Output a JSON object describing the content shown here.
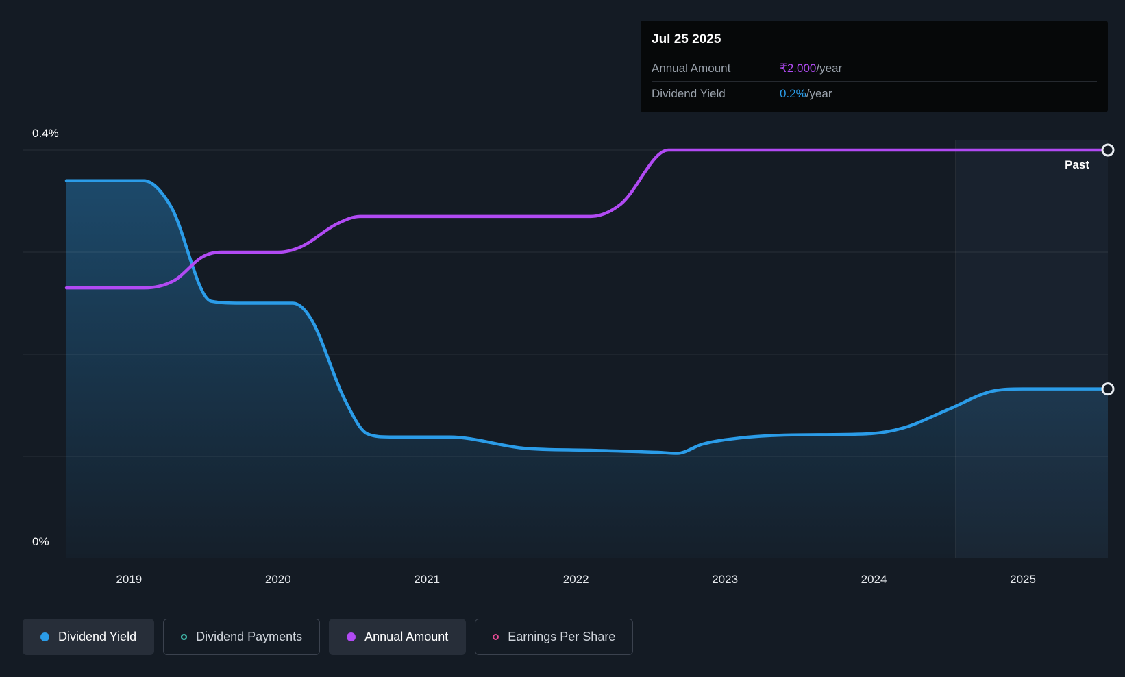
{
  "tooltip": {
    "date": "Jul 25 2025",
    "rows": [
      {
        "label": "Annual Amount",
        "value": "₹2.000",
        "suffix": "/year",
        "color": "#b14af3"
      },
      {
        "label": "Dividend Yield",
        "value": "0.2%",
        "suffix": "/year",
        "color": "#2b9ce8"
      }
    ]
  },
  "past_label": "Past",
  "legend": [
    {
      "label": "Dividend Yield",
      "active": true,
      "marker": "dot",
      "color": "#2b9ce8"
    },
    {
      "label": "Dividend Payments",
      "active": false,
      "marker": "ring",
      "color": "#45c8b8"
    },
    {
      "label": "Annual Amount",
      "active": true,
      "marker": "dot",
      "color": "#b14af3"
    },
    {
      "label": "Earnings Per Share",
      "active": false,
      "marker": "ring",
      "color": "#e54a93"
    }
  ],
  "chart_data": {
    "type": "line",
    "x_range": [
      2018.58,
      2025.57
    ],
    "x_ticks": [
      2019,
      2020,
      2021,
      2022,
      2023,
      2024,
      2025
    ],
    "gridline_values": [
      0.1,
      0.2,
      0.3,
      0.4
    ],
    "y_tick_labels": [
      {
        "value": 0.4,
        "label": "0.4%"
      },
      {
        "value": 0,
        "label": "0%"
      }
    ],
    "ylim_percent": [
      0,
      0.44
    ],
    "grid": true,
    "past_marker_x": 2024.55,
    "series": [
      {
        "name": "Dividend Yield",
        "color": "#2b9ce8",
        "area_fill": true,
        "points": [
          [
            2018.58,
            0.37
          ],
          [
            2019.1,
            0.37
          ],
          [
            2019.28,
            0.345
          ],
          [
            2019.55,
            0.252
          ],
          [
            2019.75,
            0.25
          ],
          [
            2020.1,
            0.25
          ],
          [
            2020.22,
            0.235
          ],
          [
            2020.45,
            0.155
          ],
          [
            2020.6,
            0.122
          ],
          [
            2020.75,
            0.119
          ],
          [
            2021.15,
            0.119
          ],
          [
            2021.65,
            0.108
          ],
          [
            2022.1,
            0.106
          ],
          [
            2022.55,
            0.104
          ],
          [
            2022.68,
            0.103
          ],
          [
            2022.85,
            0.112
          ],
          [
            2023.1,
            0.118
          ],
          [
            2023.45,
            0.121
          ],
          [
            2023.95,
            0.122
          ],
          [
            2024.2,
            0.128
          ],
          [
            2024.5,
            0.146
          ],
          [
            2024.8,
            0.164
          ],
          [
            2025.0,
            0.166
          ],
          [
            2025.57,
            0.166
          ]
        ]
      },
      {
        "name": "Annual Amount",
        "color": "#b14af3",
        "area_fill": false,
        "points": [
          [
            2018.58,
            0.265
          ],
          [
            2019.1,
            0.265
          ],
          [
            2019.3,
            0.272
          ],
          [
            2019.5,
            0.296
          ],
          [
            2019.62,
            0.3
          ],
          [
            2020.0,
            0.3
          ],
          [
            2020.15,
            0.305
          ],
          [
            2020.4,
            0.328
          ],
          [
            2020.55,
            0.335
          ],
          [
            2022.1,
            0.335
          ],
          [
            2022.3,
            0.347
          ],
          [
            2022.62,
            0.4
          ],
          [
            2025.57,
            0.4
          ]
        ]
      }
    ]
  }
}
